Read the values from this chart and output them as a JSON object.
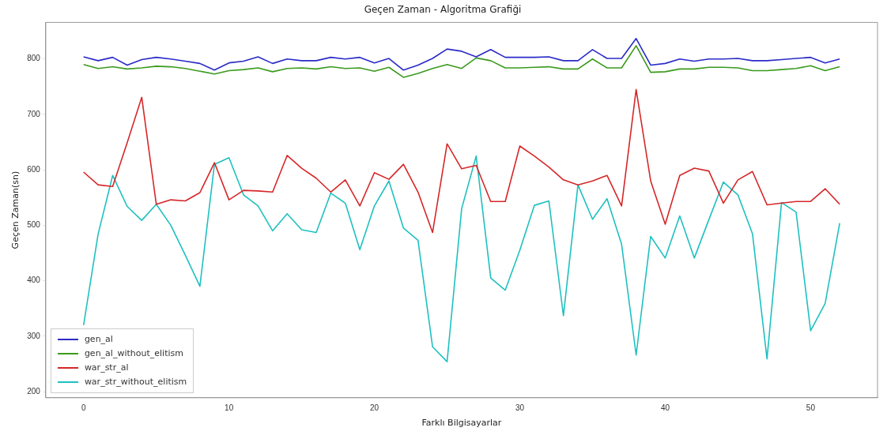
{
  "chart_data": {
    "type": "line",
    "title": "Geçen Zaman - Algoritma Grafiği",
    "xlabel": "Farklı Bilgisayarlar",
    "ylabel": "Geçen Zaman(sn)",
    "x": [
      0,
      1,
      2,
      3,
      4,
      5,
      6,
      7,
      8,
      9,
      10,
      11,
      12,
      13,
      14,
      15,
      16,
      17,
      18,
      19,
      20,
      21,
      22,
      23,
      24,
      25,
      26,
      27,
      28,
      29,
      30,
      31,
      32,
      33,
      34,
      35,
      36,
      37,
      38,
      39,
      40,
      41,
      42,
      43,
      44,
      45,
      46,
      47,
      48,
      49,
      50,
      51,
      52
    ],
    "xlim": [
      -2.6,
      54.6
    ],
    "xticks": [
      0,
      10,
      20,
      30,
      40,
      50
    ],
    "ylim": [
      189,
      866
    ],
    "yticks": [
      200,
      300,
      400,
      500,
      600,
      700,
      800
    ],
    "grid": false,
    "legend": "bottom left",
    "marker": "none",
    "line_style": "solid",
    "series": [
      {
        "name": "gen_al",
        "color": "#2a2ac8",
        "values": [
          804,
          797,
          803,
          789,
          799,
          803,
          800,
          796,
          792,
          780,
          793,
          796,
          804,
          792,
          800,
          797,
          797,
          803,
          800,
          803,
          793,
          801,
          780,
          789,
          801,
          818,
          814,
          804,
          817,
          803,
          803,
          803,
          804,
          797,
          797,
          817,
          801,
          801,
          837,
          789,
          792,
          800,
          796,
          800,
          800,
          801,
          797,
          797,
          799,
          801,
          803,
          793,
          800
        ]
      },
      {
        "name": "gen_al_without_elitism",
        "color": "#3a9a1c",
        "values": [
          790,
          783,
          786,
          782,
          784,
          787,
          786,
          783,
          778,
          773,
          779,
          781,
          784,
          777,
          783,
          784,
          782,
          786,
          783,
          784,
          778,
          785,
          767,
          774,
          783,
          790,
          783,
          802,
          797,
          784,
          784,
          785,
          786,
          782,
          782,
          800,
          784,
          784,
          824,
          776,
          777,
          782,
          782,
          785,
          785,
          784,
          779,
          779,
          781,
          783,
          788,
          779,
          786
        ]
      },
      {
        "name": "war_str_al",
        "color": "#d62728",
        "values": [
          596,
          573,
          570,
          649,
          731,
          538,
          546,
          544,
          559,
          613,
          546,
          563,
          562,
          560,
          626,
          603,
          585,
          560,
          582,
          535,
          595,
          583,
          610,
          560,
          487,
          647,
          602,
          608,
          543,
          543,
          643,
          625,
          605,
          582,
          573,
          580,
          590,
          535,
          745,
          580,
          502,
          590,
          603,
          598,
          540,
          582,
          597,
          537,
          540,
          543,
          543,
          566,
          538
        ]
      },
      {
        "name": "war_str_without_elitism",
        "color": "#1fc0c0",
        "values": [
          320,
          484,
          590,
          534,
          509,
          538,
          500,
          446,
          390,
          610,
          622,
          555,
          535,
          490,
          521,
          492,
          487,
          558,
          540,
          456,
          535,
          580,
          495,
          473,
          281,
          254,
          530,
          625,
          405,
          383,
          455,
          536,
          544,
          337,
          573,
          511,
          548,
          466,
          266,
          480,
          441,
          517,
          441,
          510,
          578,
          555,
          485,
          259,
          541,
          524,
          310,
          359,
          504
        ]
      }
    ]
  }
}
